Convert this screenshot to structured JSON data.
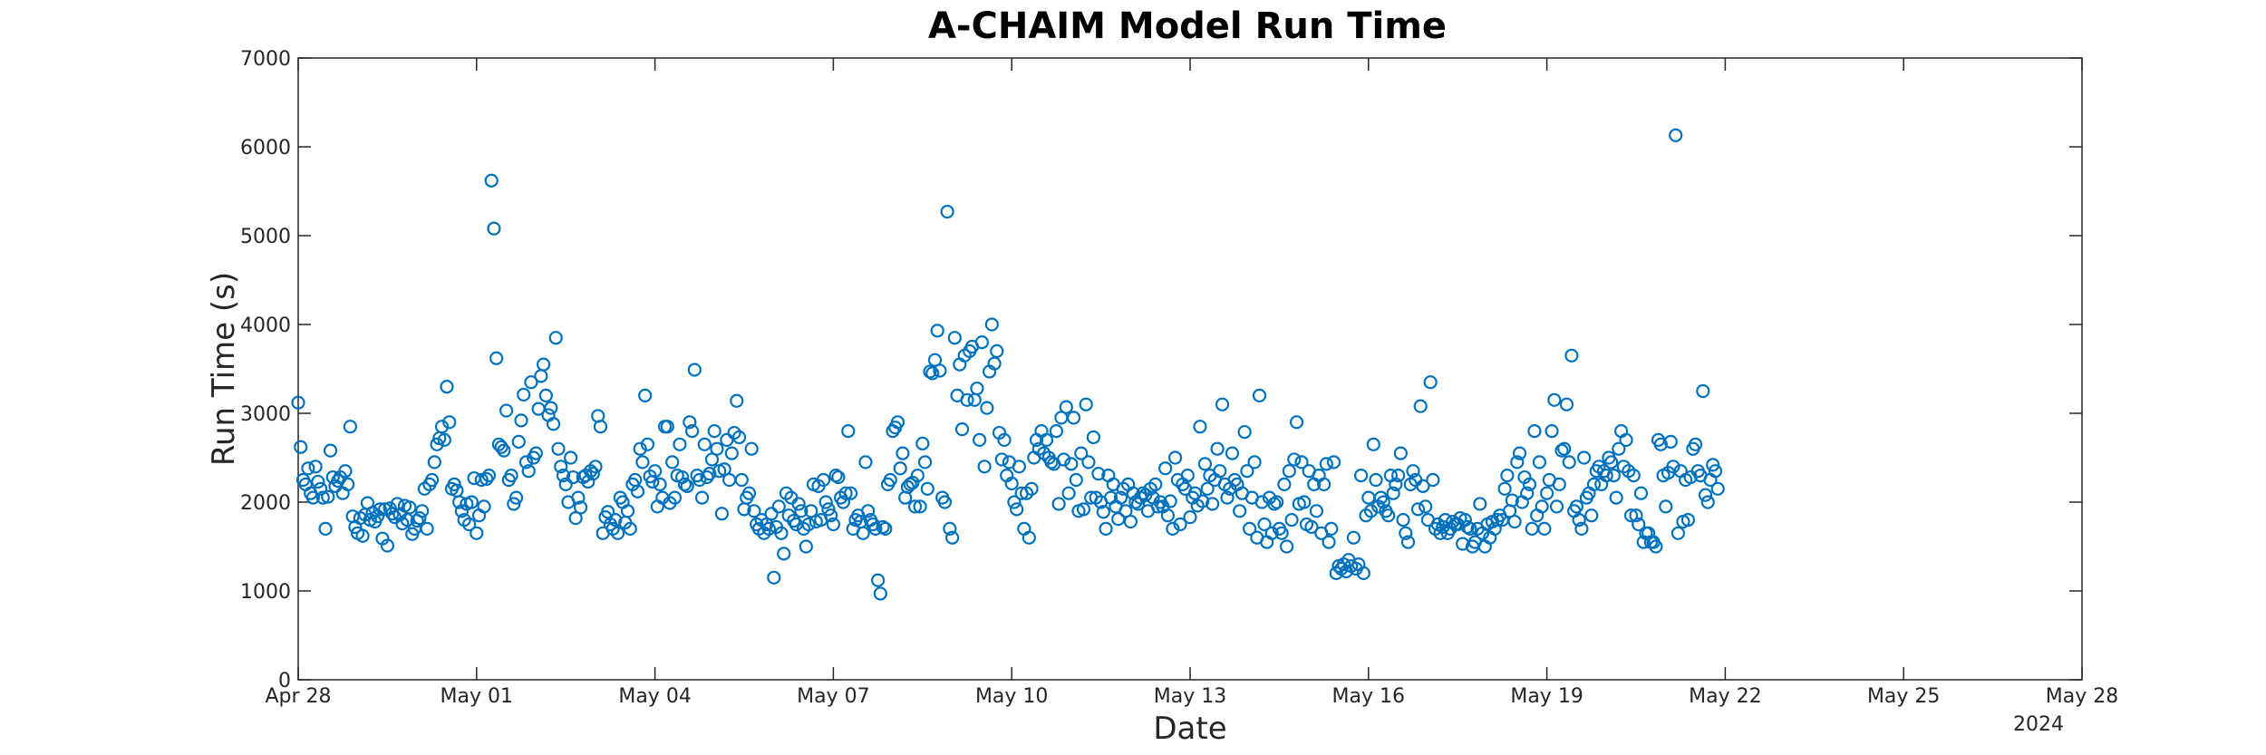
{
  "chart_data": {
    "type": "scatter",
    "title": "A-CHAIM Model Run Time",
    "xlabel": "Date",
    "ylabel": "Run Time (s)",
    "year_label": "2024",
    "x_start": "2024-04-28",
    "x_end": "2024-05-28",
    "xlim": [
      "2024-04-28",
      "2024-05-28"
    ],
    "x_ticks": [
      {
        "date": "2024-04-28",
        "label": "Apr 28"
      },
      {
        "date": "2024-05-01",
        "label": "May 01"
      },
      {
        "date": "2024-05-04",
        "label": "May 04"
      },
      {
        "date": "2024-05-07",
        "label": "May 07"
      },
      {
        "date": "2024-05-10",
        "label": "May 10"
      },
      {
        "date": "2024-05-13",
        "label": "May 13"
      },
      {
        "date": "2024-05-16",
        "label": "May 16"
      },
      {
        "date": "2024-05-19",
        "label": "May 19"
      },
      {
        "date": "2024-05-22",
        "label": "May 22"
      },
      {
        "date": "2024-05-25",
        "label": "May 25"
      },
      {
        "date": "2024-05-28",
        "label": "May 28"
      }
    ],
    "ylim": [
      0,
      7000
    ],
    "y_ticks": [
      0,
      1000,
      2000,
      3000,
      4000,
      5000,
      6000,
      7000
    ],
    "grid": false,
    "marker_color": "#0072BD",
    "marker": "open-circle",
    "samples_per_day": 24,
    "series": [
      {
        "values": [
          3120,
          2620,
          2250,
          2200,
          2380,
          2100,
          2050,
          2400,
          2230,
          2150,
          2050,
          1700,
          2060,
          2580,
          2280,
          2180,
          2240,
          2280,
          2100,
          2350,
          2200,
          2850,
          1840,
          1720,
          1650,
          1820,
          1620,
          1860,
          1990,
          1800,
          1880,
          1780,
          1840,
          1920,
          1590,
          1920,
          1510,
          1930,
          1870,
          1830,
          1980,
          1860,
          1760,
          1960,
          1800,
          1940,
          1640,
          1700,
          1790,
          1820,
          1900,
          2150,
          1700,
          2200,
          2250,
          2450,
          2650,
          2720,
          2850,
          2700,
          3300,
          2900,
          2150,
          2200,
          2130,
          2000,
          1900,
          1800,
          1980,
          1750,
          2000,
          2270,
          1650,
          1850,
          2250,
          1950,
          2260,
          2300,
          5620,
          5080,
          3620,
          2650,
          2620,
          2580,
          3030,
          2250,
          2300,
          1980,
          2050,
          2680,
          2920,
          3210,
          2450,
          2350,
          3350,
          2500,
          2550,
          3050,
          3420,
          3550,
          3200,
          2980,
          3060,
          2880,
          3850,
          2600,
          2400,
          2300,
          2200,
          2000,
          2500,
          2280,
          1820,
          2050,
          1940,
          2280,
          2300,
          2230,
          2350,
          2320,
          2400,
          2970,
          2850,
          1650,
          1830,
          1890,
          1750,
          1700,
          1800,
          1650,
          2050,
          2000,
          1770,
          1900,
          1700,
          2200,
          2250,
          2120,
          2600,
          2450,
          3200,
          2650,
          2290,
          2230,
          2350,
          1950,
          2200,
          2050,
          2850,
          2850,
          1990,
          2450,
          2050,
          2300,
          2650,
          2280,
          2200,
          2180,
          2900,
          2800,
          3490,
          2300,
          2250,
          2050,
          2650,
          2280,
          2320,
          2480,
          2800,
          2600,
          2350,
          1870,
          2370,
          2700,
          2250,
          2550,
          2780,
          3140,
          2730,
          2250,
          1920,
          2050,
          2100,
          2600,
          1900,
          1750,
          1700,
          1800,
          1650,
          1750,
          1700,
          1870,
          1150,
          1720,
          1950,
          1650,
          1420,
          2100,
          1850,
          2050,
          1790,
          1750,
          1980,
          1900,
          1700,
          1500,
          1750,
          1900,
          2200,
          1780,
          2180,
          1800,
          2250,
          2000,
          1920,
          1850,
          1750,
          2300,
          2280,
          2050,
          2000,
          2100,
          2800,
          2100,
          1700,
          1800,
          1850,
          1780,
          1650,
          2450,
          1900,
          1800,
          1750,
          1700,
          1120,
          970,
          1720,
          1700,
          2200,
          2250,
          2800,
          2840,
          2900,
          2380,
          2550,
          2050,
          2170,
          2200,
          2220,
          1950,
          2300,
          1950,
          2660,
          2450,
          2150,
          3470,
          3450,
          3600,
          3930,
          3480,
          2050,
          2000,
          5270,
          1700,
          1600,
          3850,
          3200,
          3550,
          2820,
          3650,
          3150,
          3700,
          3750,
          3150,
          3280,
          2700,
          3800,
          2400,
          3060,
          3470,
          4000,
          3560,
          3700,
          2780,
          2480,
          2700,
          2300,
          2450,
          2210,
          2000,
          1920,
          2400,
          2100,
          1700,
          2100,
          1600,
          2150,
          2500,
          2700,
          2600,
          2800,
          2550,
          2700,
          2500,
          2450,
          2430,
          2800,
          1980,
          2950,
          2480,
          3070,
          2100,
          2430,
          2950,
          2250,
          1900,
          2550,
          1920,
          3100,
          2450,
          2050,
          2730,
          2050,
          2320,
          2000,
          1890,
          1700,
          2300,
          2050,
          2200,
          1950,
          1810,
          2050,
          2150,
          1900,
          2200,
          1780,
          2100,
          2000,
          1980,
          2050,
          2100,
          2080,
          1900,
          2150,
          2050,
          2200,
          1950,
          2000,
          1950,
          2380,
          1850,
          2010,
          1700,
          2500,
          2250,
          1750,
          2200,
          2150,
          2300,
          1830,
          2050,
          2100,
          1960,
          2850,
          2010,
          2430,
          2150,
          2300,
          1980,
          2250,
          2600,
          2350,
          3100,
          2200,
          2050,
          2150,
          2550,
          2250,
          2200,
          1900,
          2100,
          2790,
          2350,
          1700,
          2050,
          2450,
          1600,
          3200,
          2000,
          1750,
          1550,
          2050,
          1650,
          1980,
          2000,
          1700,
          1650,
          2200,
          1500,
          2350,
          1800,
          2480,
          2900,
          1980,
          2450,
          2000,
          1750,
          2350,
          1720,
          2200,
          1900,
          2300,
          1650,
          2200,
          2430,
          1550,
          1700,
          2450,
          1200,
          1280,
          1250,
          1300,
          1220,
          1350,
          1280,
          1600,
          1250,
          1300,
          2300,
          1200,
          1850,
          2050,
          1900,
          2650,
          2250,
          1950,
          2050,
          2000,
          1900,
          1850,
          2300,
          2100,
          2200,
          2300,
          2550,
          1800,
          1650,
          1550,
          2200,
          2350,
          2250,
          1920,
          3080,
          2180,
          1950,
          1800,
          3350,
          2250,
          1700,
          1750,
          1650,
          1720,
          1800,
          1650,
          1700,
          1780,
          1750,
          1750,
          1820,
          1530,
          1800,
          1720,
          1700,
          1500,
          1550,
          1700,
          1980,
          1650,
          1500,
          1750,
          1600,
          1780,
          1700,
          1800,
          1850,
          1800,
          2150,
          2300,
          1900,
          2020,
          1780,
          2450,
          2550,
          2000,
          2280,
          2100,
          2200,
          1700,
          2800,
          1850,
          2450,
          1950,
          1700,
          2100,
          2250,
          2800,
          3150,
          1950,
          2200,
          2580,
          2600,
          3100,
          2450,
          3650,
          1900,
          1950,
          1800,
          1700,
          2500,
          2050,
          2100,
          1850,
          2200,
          2350,
          2400,
          2200,
          2350,
          2300,
          2500,
          2450,
          2300,
          2050,
          2600,
          2800,
          2400,
          2700,
          2350,
          1850,
          2300,
          1850,
          1750,
          2100,
          1550,
          1650,
          1650,
          1550,
          1550,
          1500,
          2700,
          2650,
          2300,
          1950,
          2330,
          2680,
          2400,
          6130,
          1650,
          2350,
          1780,
          2250,
          1800,
          2280,
          2600,
          2650,
          2350,
          2300,
          3250,
          2080,
          2000,
          2250,
          2420,
          2350,
          2150
        ]
      }
    ]
  }
}
